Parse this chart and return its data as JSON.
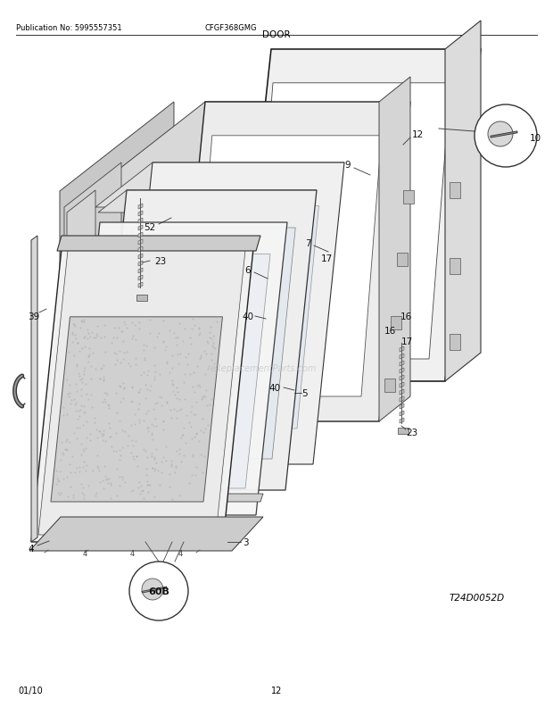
{
  "pub_no": "Publication No: 5995557351",
  "model": "CFGF368GMG",
  "section": "DOOR",
  "footer_left": "01/10",
  "footer_center": "12",
  "diagram_code": "T24D0052D",
  "bg_color": "#ffffff",
  "text_color": "#000000",
  "figsize": [
    6.2,
    8.03
  ],
  "dpi": 100,
  "watermark": "eReplacementParts.com"
}
